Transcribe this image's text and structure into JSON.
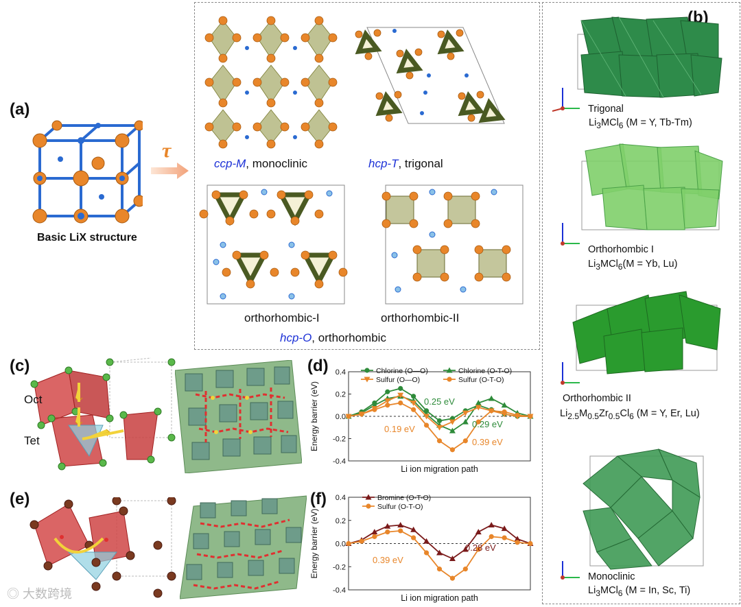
{
  "panel_a": {
    "label": "(a)",
    "basic_caption": "Basic LiX structure",
    "tau": "τ",
    "ccp": {
      "italic": "ccp-M",
      "rest": ", monoclinic"
    },
    "hcpT": {
      "italic": "hcp-T",
      "rest": ", trigonal"
    },
    "ortho1": "orthorhombic-I",
    "ortho2": "orthorhombic-II",
    "hcpO": {
      "italic": "hcp-O",
      "rest": ", orthorhombic"
    }
  },
  "panel_b": {
    "label": "(b)",
    "items": [
      {
        "name": "Trigonal",
        "formula_html": "Li<sub>3</sub>MCl<sub>6</sub> (M = Y, Tb-Tm)"
      },
      {
        "name": "Orthorhombic I",
        "formula_html": "Li<sub>3</sub>MCl<sub>6</sub>(M = Yb, Lu)"
      },
      {
        "name": "Orthorhombic II",
        "formula_html": "Li<sub>2.5</sub>M<sub>0.5</sub>Zr<sub>0.5</sub>Cl<sub>6</sub> (M = Y, Er, Lu)"
      },
      {
        "name": "Monoclinic",
        "formula_html": "Li<sub>3</sub>MCl<sub>6</sub> (M = In, Sc, Ti)"
      }
    ]
  },
  "panel_c": {
    "label": "(c)",
    "oct": "Oct",
    "tet": "Tet"
  },
  "panel_e": {
    "label": "(e)"
  },
  "panel_f": {
    "label": "(f)"
  },
  "panel_d": {
    "label": "(d)"
  },
  "watermark": "大数跨境",
  "chart_data": [
    {
      "type": "line",
      "panel": "(d)",
      "ylabel": "Energy barrier (eV)",
      "xlabel": "Li ion migration path",
      "ylim": [
        -0.4,
        0.4
      ],
      "yticks": [
        "0.4",
        "0.2",
        "0.0",
        "-0.2",
        "-0.4"
      ],
      "x": [
        0,
        1,
        2,
        3,
        4,
        5,
        6,
        7,
        8,
        9,
        10,
        11,
        12,
        13,
        14
      ],
      "series": [
        {
          "name": "Chlorine  (O—O)",
          "color": "#2e8b3a",
          "marker": "circle",
          "values": [
            0,
            0.04,
            0.12,
            0.22,
            0.25,
            0.18,
            0.05,
            -0.04,
            -0.02,
            0.05,
            0.1,
            0.06,
            0.02,
            0,
            0
          ]
        },
        {
          "name": "Chlorine  (O-T-O)",
          "color": "#2e8b3a",
          "marker": "triangle",
          "values": [
            0,
            0.03,
            0.1,
            0.16,
            0.18,
            0.14,
            0.02,
            -0.08,
            -0.13,
            -0.05,
            0.12,
            0.16,
            0.1,
            0.03,
            0
          ]
        },
        {
          "name": "Sulfur     (O—O)",
          "color": "#e8862a",
          "marker": "tri-down",
          "values": [
            0,
            0.02,
            0.07,
            0.14,
            0.19,
            0.12,
            0,
            -0.1,
            -0.05,
            0.03,
            0.08,
            0.05,
            0.02,
            0,
            0
          ]
        },
        {
          "name": "Sulfur     (O-T-O)",
          "color": "#e8862a",
          "marker": "circle",
          "values": [
            0,
            0.02,
            0.06,
            0.1,
            0.12,
            0.06,
            -0.08,
            -0.22,
            -0.3,
            -0.22,
            -0.05,
            0.05,
            0.04,
            0.01,
            0
          ]
        }
      ],
      "annotations": [
        "0.25 eV",
        "0.19 eV",
        "0.29 eV",
        "0.39 eV"
      ]
    },
    {
      "type": "line",
      "panel": "(f)",
      "ylabel": "Energy barrier (eV)",
      "xlabel": "Li ion migration path",
      "ylim": [
        -0.4,
        0.4
      ],
      "yticks": [
        "0.4",
        "0.2",
        "0.0",
        "-0.2",
        "-0.4"
      ],
      "x": [
        0,
        1,
        2,
        3,
        4,
        5,
        6,
        7,
        8,
        9,
        10,
        11,
        12,
        13,
        14
      ],
      "series": [
        {
          "name": "Bromine (O-T-O)",
          "color": "#7a1a1a",
          "marker": "triangle",
          "values": [
            0,
            0.03,
            0.1,
            0.15,
            0.16,
            0.12,
            0.02,
            -0.08,
            -0.13,
            -0.05,
            0.1,
            0.16,
            0.13,
            0.04,
            0
          ]
        },
        {
          "name": "Sulfur     (O-T-O)",
          "color": "#e8862a",
          "marker": "circle",
          "values": [
            0,
            0.02,
            0.06,
            0.1,
            0.11,
            0.05,
            -0.08,
            -0.22,
            -0.3,
            -0.22,
            -0.05,
            0.06,
            0.05,
            0.01,
            0
          ]
        }
      ],
      "annotations": [
        "0.39 eV",
        "0.28 eV"
      ]
    }
  ],
  "colors": {
    "orange": "#e8862a",
    "green": "#2e8b3a",
    "blue": "#1a2fd6",
    "red": "#c0392b",
    "brown": "#7a1a1a"
  }
}
